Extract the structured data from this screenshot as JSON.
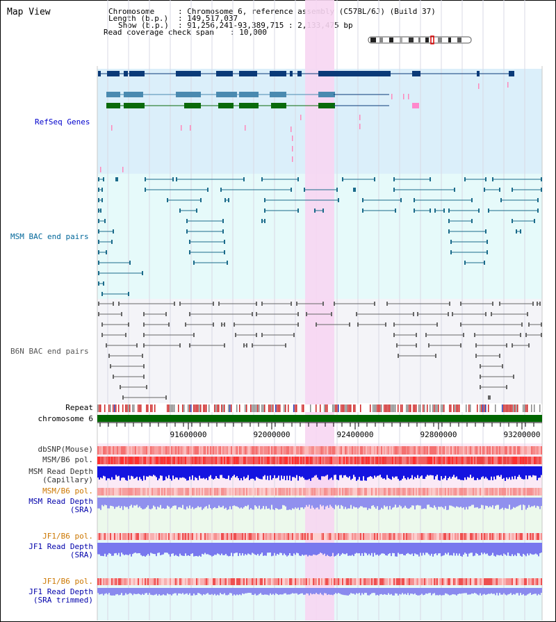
{
  "title": "Map View",
  "info": {
    "chromosome_label": "Chromosome",
    "chromosome_value": ": Chromosome 6, reference assembly (C57BL/6J) (Build 37)",
    "length_label": "Length (b.p.)",
    "length_value": ": 149,517,037",
    "show_label": "Show (b.p.)",
    "show_value": ": 91,256,241-93,389,715 : 2,133,475 bp",
    "coverage_label": "Read coverage check span",
    "coverage_value": ": 10,000"
  },
  "tracks": {
    "refseq": "RefSeq Genes",
    "msm_bac": "MSM BAC end pairs",
    "b6n_bac": "B6N BAC end pairs",
    "repeat": "Repeat",
    "chromosome": "chromosome 6",
    "dbsnp": "dbSNP(Mouse)",
    "msm_b6_pol_1": "MSM/B6 pol.",
    "msm_depth_cap_1": "MSM Read Depth",
    "msm_depth_cap_2": "(Capillary)",
    "msm_b6_pol_2": "MSM/B6 pol.",
    "msm_depth_sra_1": "MSM Read Depth",
    "msm_depth_sra_2": "(SRA)",
    "jf1_b6_pol_1": "JF1/B6 pol.",
    "jf1_depth_sra_1": "JF1 Read Depth",
    "jf1_depth_sra_2": "(SRA)",
    "jf1_b6_pol_2": "JF1/B6 pol.",
    "jf1_depth_trim_1": "JF1 Read Depth",
    "jf1_depth_trim_2": "(SRA trimmed)"
  },
  "axis": {
    "ticks": [
      "91600000",
      "92000000",
      "92400000",
      "92800000",
      "93200000"
    ]
  },
  "colors": {
    "refseq_label": "#0000cc",
    "msm_label": "#006699",
    "b6n_label": "#555555",
    "orange_label": "#cc7700",
    "blue_label": "#0000aa",
    "highlight": "#f7d6f2",
    "gene_dark": "#0a3a78",
    "gene_mid": "#4a8ab0",
    "gene_green": "#0a6a0a",
    "chromosome": "#006600"
  }
}
